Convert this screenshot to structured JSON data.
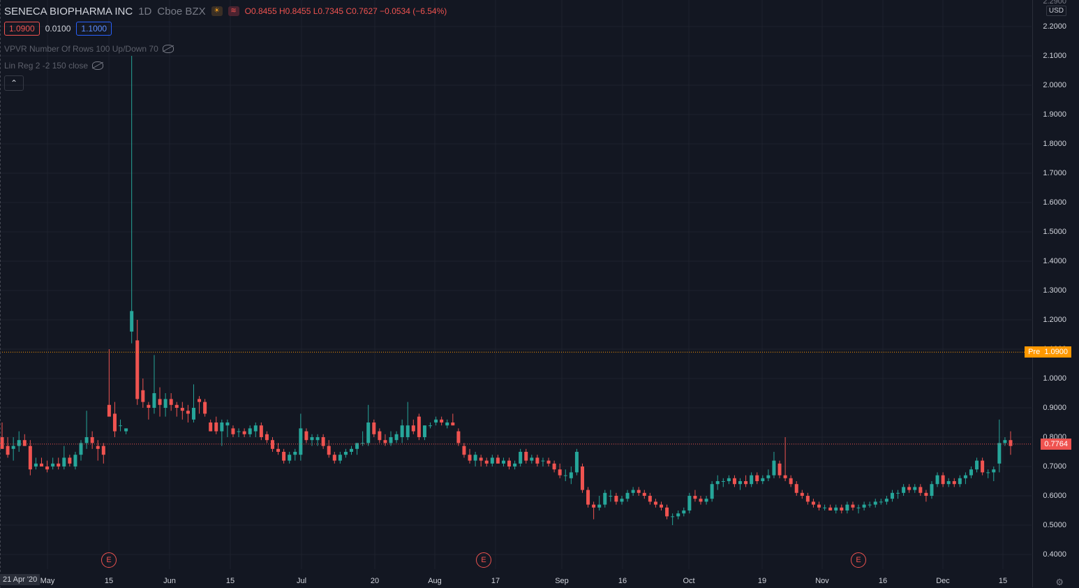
{
  "header": {
    "symbol": "SENECA BIOPHARMA INC",
    "interval": "1D",
    "exchange": "Cboe BZX",
    "sun_icon": "sun-icon",
    "signal_icon": "signal-icon",
    "ohlc": {
      "o": "O0.8455",
      "h": "H0.8455",
      "l": "L0.7345",
      "c": "C0.7627",
      "change": "−0.0534 (−6.54%)"
    }
  },
  "trade": {
    "sell": "1.0900",
    "spread": "0.0100",
    "buy": "1.1000"
  },
  "indicators": [
    {
      "label": "VPVR Number Of Rows 100 Up/Down 70"
    },
    {
      "label": "Lin Reg 2 -2 150 close"
    }
  ],
  "price_axis": {
    "currency": "USD",
    "top_cut_label": "2.2900",
    "labels": [
      "2.2000",
      "2.1000",
      "2.0000",
      "1.9000",
      "1.8000",
      "1.7000",
      "1.6000",
      "1.5000",
      "1.4000",
      "1.3000",
      "1.2000",
      "1.1000",
      "1.0000",
      "0.9000",
      "0.8000",
      "0.7000",
      "0.6000",
      "0.5000",
      "0.4000"
    ],
    "pre_label": "Pre",
    "pre_value": "1.0900",
    "last_value": "0.7764"
  },
  "time_axis": {
    "start_label": "21 Apr '20",
    "labels": [
      "May",
      "15",
      "Jun",
      "15",
      "Jul",
      "20",
      "Aug",
      "17",
      "Sep",
      "16",
      "Oct",
      "19",
      "Nov",
      "16",
      "Dec",
      "15"
    ]
  },
  "earnings": [
    "E",
    "E",
    "E"
  ],
  "colors": {
    "up": "#26a69a",
    "down": "#ef5350",
    "pre": "#ff9800",
    "bg": "#131722",
    "grid": "#1e222d"
  },
  "chart_data": {
    "type": "candlestick",
    "y_range": [
      0.35,
      2.3
    ],
    "pre_market_price": 1.09,
    "last_price": 0.7764,
    "candles": [
      {
        "o": 0.8,
        "h": 0.85,
        "l": 0.76,
        "c": 0.76
      },
      {
        "o": 0.77,
        "h": 0.8,
        "l": 0.73,
        "c": 0.74
      },
      {
        "o": 0.76,
        "h": 0.8,
        "l": 0.72,
        "c": 0.77
      },
      {
        "o": 0.77,
        "h": 0.82,
        "l": 0.75,
        "c": 0.79
      },
      {
        "o": 0.79,
        "h": 0.81,
        "l": 0.77,
        "c": 0.77
      },
      {
        "o": 0.77,
        "h": 0.79,
        "l": 0.67,
        "c": 0.69
      },
      {
        "o": 0.7,
        "h": 0.73,
        "l": 0.69,
        "c": 0.71
      },
      {
        "o": 0.71,
        "h": 0.73,
        "l": 0.7,
        "c": 0.7
      },
      {
        "o": 0.7,
        "h": 0.72,
        "l": 0.68,
        "c": 0.69
      },
      {
        "o": 0.7,
        "h": 0.73,
        "l": 0.69,
        "c": 0.71
      },
      {
        "o": 0.71,
        "h": 0.73,
        "l": 0.69,
        "c": 0.7
      },
      {
        "o": 0.7,
        "h": 0.77,
        "l": 0.69,
        "c": 0.73
      },
      {
        "o": 0.73,
        "h": 0.74,
        "l": 0.7,
        "c": 0.71
      },
      {
        "o": 0.7,
        "h": 0.75,
        "l": 0.69,
        "c": 0.74
      },
      {
        "o": 0.74,
        "h": 0.79,
        "l": 0.72,
        "c": 0.78
      },
      {
        "o": 0.78,
        "h": 0.89,
        "l": 0.76,
        "c": 0.8
      },
      {
        "o": 0.8,
        "h": 0.82,
        "l": 0.76,
        "c": 0.78
      },
      {
        "o": 0.77,
        "h": 0.79,
        "l": 0.72,
        "c": 0.76
      },
      {
        "o": 0.77,
        "h": 0.78,
        "l": 0.71,
        "c": 0.74
      },
      {
        "o": 0.91,
        "h": 1.1,
        "l": 0.88,
        "c": 0.87
      },
      {
        "o": 0.88,
        "h": 0.92,
        "l": 0.8,
        "c": 0.82
      },
      {
        "o": 0.84,
        "h": 0.86,
        "l": 0.82,
        "c": 0.84
      },
      {
        "o": 0.82,
        "h": 0.83,
        "l": 0.81,
        "c": 0.83
      },
      {
        "o": 1.16,
        "h": 2.1,
        "l": 1.12,
        "c": 1.23
      },
      {
        "o": 1.13,
        "h": 1.2,
        "l": 0.91,
        "c": 0.93
      },
      {
        "o": 0.96,
        "h": 1.0,
        "l": 0.9,
        "c": 0.92
      },
      {
        "o": 0.91,
        "h": 0.92,
        "l": 0.86,
        "c": 0.9
      },
      {
        "o": 0.9,
        "h": 1.08,
        "l": 0.88,
        "c": 0.95
      },
      {
        "o": 0.93,
        "h": 0.97,
        "l": 0.87,
        "c": 0.91
      },
      {
        "o": 0.9,
        "h": 0.95,
        "l": 0.87,
        "c": 0.93
      },
      {
        "o": 0.93,
        "h": 0.95,
        "l": 0.89,
        "c": 0.91
      },
      {
        "o": 0.91,
        "h": 0.92,
        "l": 0.87,
        "c": 0.9
      },
      {
        "o": 0.9,
        "h": 0.92,
        "l": 0.86,
        "c": 0.89
      },
      {
        "o": 0.89,
        "h": 0.91,
        "l": 0.85,
        "c": 0.88
      },
      {
        "o": 0.86,
        "h": 0.98,
        "l": 0.85,
        "c": 0.9
      },
      {
        "o": 0.93,
        "h": 0.94,
        "l": 0.88,
        "c": 0.92
      },
      {
        "o": 0.92,
        "h": 0.93,
        "l": 0.87,
        "c": 0.88
      },
      {
        "o": 0.85,
        "h": 0.86,
        "l": 0.82,
        "c": 0.82
      },
      {
        "o": 0.85,
        "h": 0.87,
        "l": 0.81,
        "c": 0.82
      },
      {
        "o": 0.82,
        "h": 0.86,
        "l": 0.77,
        "c": 0.85
      },
      {
        "o": 0.84,
        "h": 0.86,
        "l": 0.8,
        "c": 0.85
      },
      {
        "o": 0.83,
        "h": 0.84,
        "l": 0.8,
        "c": 0.81
      },
      {
        "o": 0.82,
        "h": 0.83,
        "l": 0.8,
        "c": 0.82
      },
      {
        "o": 0.82,
        "h": 0.83,
        "l": 0.8,
        "c": 0.81
      },
      {
        "o": 0.81,
        "h": 0.84,
        "l": 0.8,
        "c": 0.83
      },
      {
        "o": 0.82,
        "h": 0.85,
        "l": 0.8,
        "c": 0.84
      },
      {
        "o": 0.84,
        "h": 0.85,
        "l": 0.79,
        "c": 0.8
      },
      {
        "o": 0.81,
        "h": 0.82,
        "l": 0.78,
        "c": 0.79
      },
      {
        "o": 0.79,
        "h": 0.8,
        "l": 0.75,
        "c": 0.76
      },
      {
        "o": 0.76,
        "h": 0.78,
        "l": 0.74,
        "c": 0.75
      },
      {
        "o": 0.75,
        "h": 0.76,
        "l": 0.71,
        "c": 0.72
      },
      {
        "o": 0.72,
        "h": 0.75,
        "l": 0.71,
        "c": 0.74
      },
      {
        "o": 0.74,
        "h": 0.76,
        "l": 0.72,
        "c": 0.75
      },
      {
        "o": 0.74,
        "h": 0.88,
        "l": 0.72,
        "c": 0.83
      },
      {
        "o": 0.82,
        "h": 0.83,
        "l": 0.78,
        "c": 0.79
      },
      {
        "o": 0.79,
        "h": 0.81,
        "l": 0.77,
        "c": 0.8
      },
      {
        "o": 0.79,
        "h": 0.81,
        "l": 0.77,
        "c": 0.8
      },
      {
        "o": 0.8,
        "h": 0.81,
        "l": 0.76,
        "c": 0.77
      },
      {
        "o": 0.77,
        "h": 0.79,
        "l": 0.73,
        "c": 0.74
      },
      {
        "o": 0.74,
        "h": 0.75,
        "l": 0.71,
        "c": 0.72
      },
      {
        "o": 0.72,
        "h": 0.75,
        "l": 0.71,
        "c": 0.74
      },
      {
        "o": 0.74,
        "h": 0.76,
        "l": 0.73,
        "c": 0.75
      },
      {
        "o": 0.75,
        "h": 0.77,
        "l": 0.74,
        "c": 0.76
      },
      {
        "o": 0.76,
        "h": 0.78,
        "l": 0.74,
        "c": 0.78
      },
      {
        "o": 0.78,
        "h": 0.82,
        "l": 0.77,
        "c": 0.78
      },
      {
        "o": 0.78,
        "h": 0.91,
        "l": 0.77,
        "c": 0.85
      },
      {
        "o": 0.85,
        "h": 0.86,
        "l": 0.8,
        "c": 0.81
      },
      {
        "o": 0.82,
        "h": 0.83,
        "l": 0.78,
        "c": 0.79
      },
      {
        "o": 0.79,
        "h": 0.81,
        "l": 0.77,
        "c": 0.78
      },
      {
        "o": 0.78,
        "h": 0.82,
        "l": 0.77,
        "c": 0.8
      },
      {
        "o": 0.79,
        "h": 0.82,
        "l": 0.78,
        "c": 0.81
      },
      {
        "o": 0.8,
        "h": 0.86,
        "l": 0.78,
        "c": 0.84
      },
      {
        "o": 0.8,
        "h": 0.92,
        "l": 0.79,
        "c": 0.84
      },
      {
        "o": 0.84,
        "h": 0.86,
        "l": 0.81,
        "c": 0.82
      },
      {
        "o": 0.87,
        "h": 0.88,
        "l": 0.79,
        "c": 0.8
      },
      {
        "o": 0.8,
        "h": 0.84,
        "l": 0.79,
        "c": 0.84
      },
      {
        "o": 0.84,
        "h": 0.85,
        "l": 0.83,
        "c": 0.84
      },
      {
        "o": 0.85,
        "h": 0.87,
        "l": 0.84,
        "c": 0.86
      },
      {
        "o": 0.86,
        "h": 0.87,
        "l": 0.84,
        "c": 0.85
      },
      {
        "o": 0.84,
        "h": 0.86,
        "l": 0.83,
        "c": 0.85
      },
      {
        "o": 0.85,
        "h": 0.88,
        "l": 0.84,
        "c": 0.84
      },
      {
        "o": 0.82,
        "h": 0.83,
        "l": 0.77,
        "c": 0.78
      },
      {
        "o": 0.77,
        "h": 0.78,
        "l": 0.73,
        "c": 0.74
      },
      {
        "o": 0.74,
        "h": 0.76,
        "l": 0.71,
        "c": 0.72
      },
      {
        "o": 0.72,
        "h": 0.75,
        "l": 0.7,
        "c": 0.74
      },
      {
        "o": 0.73,
        "h": 0.74,
        "l": 0.7,
        "c": 0.72
      },
      {
        "o": 0.72,
        "h": 0.73,
        "l": 0.7,
        "c": 0.71
      },
      {
        "o": 0.71,
        "h": 0.74,
        "l": 0.7,
        "c": 0.73
      },
      {
        "o": 0.73,
        "h": 0.74,
        "l": 0.71,
        "c": 0.71
      },
      {
        "o": 0.71,
        "h": 0.73,
        "l": 0.7,
        "c": 0.72
      },
      {
        "o": 0.72,
        "h": 0.73,
        "l": 0.69,
        "c": 0.7
      },
      {
        "o": 0.7,
        "h": 0.72,
        "l": 0.69,
        "c": 0.71
      },
      {
        "o": 0.71,
        "h": 0.76,
        "l": 0.7,
        "c": 0.75
      },
      {
        "o": 0.75,
        "h": 0.76,
        "l": 0.71,
        "c": 0.72
      },
      {
        "o": 0.72,
        "h": 0.74,
        "l": 0.71,
        "c": 0.73
      },
      {
        "o": 0.73,
        "h": 0.74,
        "l": 0.7,
        "c": 0.71
      },
      {
        "o": 0.72,
        "h": 0.73,
        "l": 0.7,
        "c": 0.72
      },
      {
        "o": 0.72,
        "h": 0.73,
        "l": 0.7,
        "c": 0.71
      },
      {
        "o": 0.71,
        "h": 0.72,
        "l": 0.68,
        "c": 0.69
      },
      {
        "o": 0.69,
        "h": 0.71,
        "l": 0.66,
        "c": 0.67
      },
      {
        "o": 0.67,
        "h": 0.69,
        "l": 0.65,
        "c": 0.67
      },
      {
        "o": 0.66,
        "h": 0.7,
        "l": 0.64,
        "c": 0.68
      },
      {
        "o": 0.68,
        "h": 0.76,
        "l": 0.67,
        "c": 0.75
      },
      {
        "o": 0.7,
        "h": 0.71,
        "l": 0.61,
        "c": 0.62
      },
      {
        "o": 0.62,
        "h": 0.63,
        "l": 0.56,
        "c": 0.57
      },
      {
        "o": 0.57,
        "h": 0.58,
        "l": 0.52,
        "c": 0.56
      },
      {
        "o": 0.56,
        "h": 0.6,
        "l": 0.55,
        "c": 0.57
      },
      {
        "o": 0.57,
        "h": 0.62,
        "l": 0.56,
        "c": 0.61
      },
      {
        "o": 0.6,
        "h": 0.62,
        "l": 0.58,
        "c": 0.6
      },
      {
        "o": 0.6,
        "h": 0.61,
        "l": 0.57,
        "c": 0.58
      },
      {
        "o": 0.58,
        "h": 0.6,
        "l": 0.57,
        "c": 0.59
      },
      {
        "o": 0.59,
        "h": 0.62,
        "l": 0.58,
        "c": 0.61
      },
      {
        "o": 0.61,
        "h": 0.63,
        "l": 0.6,
        "c": 0.62
      },
      {
        "o": 0.62,
        "h": 0.63,
        "l": 0.6,
        "c": 0.61
      },
      {
        "o": 0.61,
        "h": 0.62,
        "l": 0.59,
        "c": 0.6
      },
      {
        "o": 0.6,
        "h": 0.61,
        "l": 0.57,
        "c": 0.58
      },
      {
        "o": 0.58,
        "h": 0.59,
        "l": 0.56,
        "c": 0.57
      },
      {
        "o": 0.57,
        "h": 0.58,
        "l": 0.55,
        "c": 0.56
      },
      {
        "o": 0.56,
        "h": 0.57,
        "l": 0.52,
        "c": 0.53
      },
      {
        "o": 0.53,
        "h": 0.54,
        "l": 0.5,
        "c": 0.53
      },
      {
        "o": 0.53,
        "h": 0.55,
        "l": 0.52,
        "c": 0.54
      },
      {
        "o": 0.54,
        "h": 0.56,
        "l": 0.53,
        "c": 0.55
      },
      {
        "o": 0.55,
        "h": 0.61,
        "l": 0.54,
        "c": 0.6
      },
      {
        "o": 0.6,
        "h": 0.62,
        "l": 0.58,
        "c": 0.59
      },
      {
        "o": 0.59,
        "h": 0.6,
        "l": 0.57,
        "c": 0.58
      },
      {
        "o": 0.58,
        "h": 0.6,
        "l": 0.57,
        "c": 0.59
      },
      {
        "o": 0.59,
        "h": 0.65,
        "l": 0.58,
        "c": 0.64
      },
      {
        "o": 0.64,
        "h": 0.67,
        "l": 0.62,
        "c": 0.65
      },
      {
        "o": 0.65,
        "h": 0.66,
        "l": 0.63,
        "c": 0.65
      },
      {
        "o": 0.65,
        "h": 0.67,
        "l": 0.64,
        "c": 0.66
      },
      {
        "o": 0.66,
        "h": 0.67,
        "l": 0.63,
        "c": 0.64
      },
      {
        "o": 0.64,
        "h": 0.66,
        "l": 0.62,
        "c": 0.65
      },
      {
        "o": 0.65,
        "h": 0.67,
        "l": 0.63,
        "c": 0.64
      },
      {
        "o": 0.64,
        "h": 0.68,
        "l": 0.63,
        "c": 0.67
      },
      {
        "o": 0.67,
        "h": 0.68,
        "l": 0.64,
        "c": 0.65
      },
      {
        "o": 0.65,
        "h": 0.67,
        "l": 0.64,
        "c": 0.66
      },
      {
        "o": 0.66,
        "h": 0.69,
        "l": 0.65,
        "c": 0.67
      },
      {
        "o": 0.67,
        "h": 0.75,
        "l": 0.66,
        "c": 0.72
      },
      {
        "o": 0.71,
        "h": 0.72,
        "l": 0.66,
        "c": 0.67
      },
      {
        "o": 0.67,
        "h": 0.8,
        "l": 0.65,
        "c": 0.66
      },
      {
        "o": 0.66,
        "h": 0.67,
        "l": 0.63,
        "c": 0.64
      },
      {
        "o": 0.64,
        "h": 0.65,
        "l": 0.6,
        "c": 0.61
      },
      {
        "o": 0.61,
        "h": 0.62,
        "l": 0.59,
        "c": 0.6
      },
      {
        "o": 0.6,
        "h": 0.61,
        "l": 0.57,
        "c": 0.58
      },
      {
        "o": 0.58,
        "h": 0.59,
        "l": 0.56,
        "c": 0.57
      },
      {
        "o": 0.57,
        "h": 0.58,
        "l": 0.55,
        "c": 0.56
      },
      {
        "o": 0.56,
        "h": 0.57,
        "l": 0.55,
        "c": 0.56
      },
      {
        "o": 0.56,
        "h": 0.57,
        "l": 0.55,
        "c": 0.55
      },
      {
        "o": 0.55,
        "h": 0.57,
        "l": 0.54,
        "c": 0.56
      },
      {
        "o": 0.56,
        "h": 0.57,
        "l": 0.54,
        "c": 0.55
      },
      {
        "o": 0.55,
        "h": 0.58,
        "l": 0.54,
        "c": 0.57
      },
      {
        "o": 0.57,
        "h": 0.58,
        "l": 0.55,
        "c": 0.56
      },
      {
        "o": 0.56,
        "h": 0.57,
        "l": 0.54,
        "c": 0.56
      },
      {
        "o": 0.56,
        "h": 0.58,
        "l": 0.55,
        "c": 0.57
      },
      {
        "o": 0.57,
        "h": 0.58,
        "l": 0.56,
        "c": 0.57
      },
      {
        "o": 0.57,
        "h": 0.59,
        "l": 0.56,
        "c": 0.58
      },
      {
        "o": 0.58,
        "h": 0.59,
        "l": 0.57,
        "c": 0.58
      },
      {
        "o": 0.58,
        "h": 0.6,
        "l": 0.57,
        "c": 0.59
      },
      {
        "o": 0.59,
        "h": 0.62,
        "l": 0.58,
        "c": 0.61
      },
      {
        "o": 0.61,
        "h": 0.62,
        "l": 0.59,
        "c": 0.61
      },
      {
        "o": 0.61,
        "h": 0.64,
        "l": 0.6,
        "c": 0.63
      },
      {
        "o": 0.63,
        "h": 0.64,
        "l": 0.61,
        "c": 0.62
      },
      {
        "o": 0.62,
        "h": 0.64,
        "l": 0.61,
        "c": 0.63
      },
      {
        "o": 0.63,
        "h": 0.64,
        "l": 0.6,
        "c": 0.61
      },
      {
        "o": 0.61,
        "h": 0.62,
        "l": 0.58,
        "c": 0.6
      },
      {
        "o": 0.6,
        "h": 0.65,
        "l": 0.59,
        "c": 0.64
      },
      {
        "o": 0.64,
        "h": 0.68,
        "l": 0.63,
        "c": 0.67
      },
      {
        "o": 0.67,
        "h": 0.68,
        "l": 0.63,
        "c": 0.64
      },
      {
        "o": 0.64,
        "h": 0.66,
        "l": 0.63,
        "c": 0.65
      },
      {
        "o": 0.65,
        "h": 0.66,
        "l": 0.63,
        "c": 0.64
      },
      {
        "o": 0.64,
        "h": 0.67,
        "l": 0.63,
        "c": 0.66
      },
      {
        "o": 0.66,
        "h": 0.68,
        "l": 0.64,
        "c": 0.67
      },
      {
        "o": 0.67,
        "h": 0.7,
        "l": 0.66,
        "c": 0.69
      },
      {
        "o": 0.69,
        "h": 0.73,
        "l": 0.68,
        "c": 0.72
      },
      {
        "o": 0.72,
        "h": 0.73,
        "l": 0.67,
        "c": 0.68
      },
      {
        "o": 0.68,
        "h": 0.69,
        "l": 0.66,
        "c": 0.68
      },
      {
        "o": 0.68,
        "h": 0.7,
        "l": 0.65,
        "c": 0.69
      },
      {
        "o": 0.71,
        "h": 0.86,
        "l": 0.68,
        "c": 0.78
      },
      {
        "o": 0.78,
        "h": 0.8,
        "l": 0.77,
        "c": 0.79
      },
      {
        "o": 0.79,
        "h": 0.82,
        "l": 0.74,
        "c": 0.77
      }
    ]
  }
}
